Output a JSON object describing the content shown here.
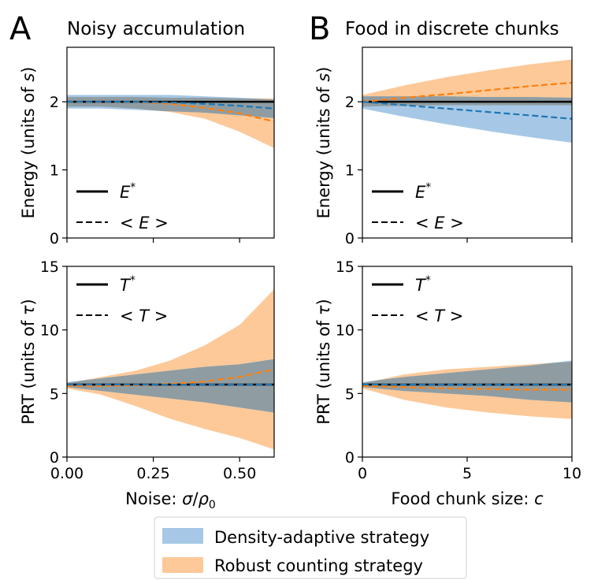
{
  "panels": {
    "A": {
      "letter": "A",
      "title": "Noisy accumulation"
    },
    "B": {
      "letter": "B",
      "title": "Food in discrete chunks"
    }
  },
  "colors": {
    "density_adaptive": "#1f77b4",
    "density_adaptive_fill": "#a6c8e6",
    "robust_counting": "#ff7f0e",
    "robust_counting_fill": "#fdc999",
    "overlap_fill": "#8f9da2",
    "optimal": "#000000"
  },
  "legend": {
    "energy": {
      "solid": "E*",
      "dashed": "<E>"
    },
    "prt": {
      "solid": "T*",
      "dashed": "<T>"
    },
    "bottom": [
      "Density-adaptive strategy",
      "Robust counting strategy"
    ]
  },
  "chart_data": [
    {
      "id": "A-energy",
      "type": "area",
      "xlabel": "",
      "ylabel": "Energy (units of s)",
      "xlim": [
        0,
        0.6
      ],
      "ylim": [
        0,
        2.8
      ],
      "yticks": [
        "0",
        "1",
        "2"
      ],
      "xticks": [],
      "x": [
        0,
        0.1,
        0.2,
        0.3,
        0.4,
        0.5,
        0.6
      ],
      "optimal": 2.0,
      "series": [
        {
          "name": "Density-adaptive strategy",
          "mean": [
            2.0,
            2.0,
            2.0,
            1.99,
            1.97,
            1.94,
            1.9
          ],
          "lower": [
            1.9,
            1.9,
            1.88,
            1.86,
            1.84,
            1.8,
            1.76
          ],
          "upper": [
            2.1,
            2.1,
            2.1,
            2.1,
            2.08,
            2.06,
            2.03
          ]
        },
        {
          "name": "Robust counting strategy",
          "mean": [
            2.0,
            2.0,
            2.0,
            1.97,
            1.91,
            1.83,
            1.71
          ],
          "lower": [
            1.93,
            1.93,
            1.9,
            1.85,
            1.75,
            1.56,
            1.32
          ],
          "upper": [
            2.07,
            2.07,
            2.07,
            2.06,
            2.06,
            2.05,
            2.05
          ]
        }
      ]
    },
    {
      "id": "B-energy",
      "type": "area",
      "xlabel": "",
      "ylabel": "Energy (units of s)",
      "xlim": [
        0,
        10
      ],
      "ylim": [
        0,
        2.8
      ],
      "yticks": [
        "0",
        "1",
        "2"
      ],
      "xticks": [],
      "x": [
        0,
        2,
        4,
        6,
        8,
        10
      ],
      "optimal": 2.0,
      "series": [
        {
          "name": "Density-adaptive strategy",
          "mean": [
            2.0,
            1.95,
            1.9,
            1.85,
            1.8,
            1.75
          ],
          "lower": [
            1.9,
            1.78,
            1.67,
            1.57,
            1.48,
            1.4
          ],
          "upper": [
            2.08,
            2.08,
            2.08,
            2.07,
            2.07,
            2.06
          ]
        },
        {
          "name": "Robust counting strategy",
          "mean": [
            2.0,
            2.06,
            2.11,
            2.17,
            2.23,
            2.28
          ],
          "lower": [
            1.93,
            1.94,
            1.95,
            1.95,
            1.95,
            1.95
          ],
          "upper": [
            2.1,
            2.24,
            2.36,
            2.46,
            2.55,
            2.62
          ]
        }
      ]
    },
    {
      "id": "A-prt",
      "type": "area",
      "xlabel": "Noise: σ/ρ0",
      "ylabel": "PRT (units of τ)",
      "xlim": [
        0,
        0.6
      ],
      "ylim": [
        0,
        15
      ],
      "yticks": [
        "0",
        "5",
        "10",
        "15"
      ],
      "xticks": [
        "0.00",
        "0.25",
        "0.50"
      ],
      "x": [
        0,
        0.1,
        0.2,
        0.3,
        0.4,
        0.5,
        0.6
      ],
      "optimal": 5.7,
      "series": [
        {
          "name": "Density-adaptive strategy",
          "mean": [
            5.7,
            5.7,
            5.7,
            5.7,
            5.7,
            5.7,
            5.7
          ],
          "lower": [
            5.5,
            5.2,
            4.9,
            4.6,
            4.3,
            3.9,
            3.5
          ],
          "upper": [
            5.9,
            6.2,
            6.5,
            6.8,
            7.1,
            7.3,
            7.7
          ]
        },
        {
          "name": "Robust counting strategy",
          "mean": [
            5.6,
            5.6,
            5.65,
            5.75,
            5.95,
            6.3,
            6.9
          ],
          "lower": [
            5.4,
            4.9,
            4.0,
            3.0,
            2.2,
            1.5,
            0.6
          ],
          "upper": [
            5.8,
            6.3,
            6.8,
            7.6,
            8.8,
            10.4,
            13.2
          ]
        }
      ]
    },
    {
      "id": "B-prt",
      "type": "area",
      "xlabel": "Food chunk size: c",
      "ylabel": "PRT (units of τ)",
      "xlim": [
        0,
        10
      ],
      "ylim": [
        0,
        15
      ],
      "yticks": [
        "0",
        "5",
        "10",
        "15"
      ],
      "xticks": [
        "0",
        "5",
        "10"
      ],
      "x": [
        0,
        2,
        4,
        6,
        8,
        10
      ],
      "optimal": 5.7,
      "series": [
        {
          "name": "Density-adaptive strategy",
          "mean": [
            5.7,
            5.7,
            5.7,
            5.7,
            5.7,
            5.7
          ],
          "lower": [
            5.5,
            5.2,
            5.0,
            4.8,
            4.5,
            4.3
          ],
          "upper": [
            5.9,
            6.3,
            6.6,
            6.9,
            7.2,
            7.6
          ]
        },
        {
          "name": "Robust counting strategy",
          "mean": [
            5.6,
            5.5,
            5.4,
            5.35,
            5.3,
            5.3
          ],
          "lower": [
            5.4,
            4.5,
            3.9,
            3.5,
            3.2,
            3.0
          ],
          "upper": [
            5.8,
            6.5,
            6.9,
            7.1,
            7.3,
            7.5
          ]
        }
      ]
    }
  ]
}
